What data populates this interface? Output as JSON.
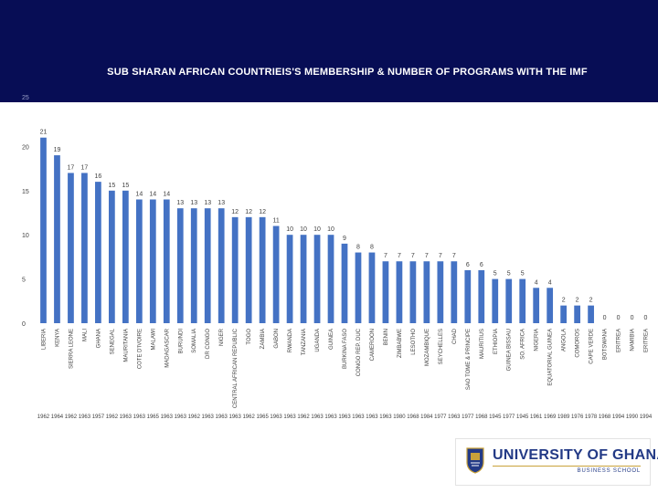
{
  "slide": {
    "title": "SUB SHARAN AFRICAN COUNTRIEIS'S MEMBERSHIP & NUMBER OF PROGRAMS WITH THE IMF",
    "top_tick_label": "25"
  },
  "logo": {
    "university": "UNIVERSITY OF GHANA",
    "school": "BUSINESS SCHOOL"
  },
  "colors": {
    "band": "#070d55",
    "bar": "#4472c4",
    "text": "#404040",
    "gridline": "#d9d9d9"
  },
  "chart_data": {
    "type": "bar",
    "title": "SUB SHARAN AFRICAN COUNTRIEIS'S MEMBERSHIP & NUMBER OF PROGRAMS WITH THE IMF",
    "xlabel": "",
    "ylabel": "",
    "ylim": [
      0,
      25
    ],
    "yticks": [
      0,
      5,
      10,
      15,
      20,
      25
    ],
    "gridlines": false,
    "categories": [
      "LIBERIA",
      "KENYA",
      "SIERRA LEONE",
      "MALI",
      "GHANA",
      "SENEGAL",
      "MAURITANIA",
      "COTE D'IVOIRE",
      "MALAWI",
      "MADAGASCAR",
      "BURUNDI",
      "SOMALIA",
      "DR CONGO",
      "NIGER",
      "CENTRAL AFRICAN REPUBLIC",
      "TOGO",
      "ZAMBIA",
      "GABON",
      "RWANDA",
      "TANZANIA",
      "UGANDA",
      "GUINEA",
      "BURKINA FASO",
      "CONGO REP. DUC",
      "CAMEROON",
      "BENIN",
      "ZIMBABWE",
      "LESOTHO",
      "MOZAMBIQUE",
      "SEYCHELLES",
      "CHAD",
      "SAO TOME & PRINCIPE",
      "MAURITIUS",
      "ETHIOPIA",
      "GUINEA BISSAU",
      "SO. AFRICA",
      "NIGERIA",
      "EQUATORIAL GUINEA",
      "ANGOLA",
      "COMOROS",
      "CAPE VERDE",
      "BOTSWANA",
      "ERITREA",
      "NAMIBIA",
      "ERITREA"
    ],
    "values": [
      21,
      19,
      17,
      17,
      16,
      15,
      15,
      14,
      14,
      14,
      13,
      13,
      13,
      13,
      12,
      12,
      12,
      11,
      10,
      10,
      10,
      10,
      9,
      8,
      8,
      7,
      7,
      7,
      7,
      7,
      7,
      6,
      6,
      5,
      5,
      5,
      4,
      4,
      2,
      2,
      2,
      0,
      0,
      0,
      0
    ],
    "membership_years": [
      "1962",
      "1964",
      "1962",
      "1963",
      "1957",
      "1962",
      "1963",
      "1963",
      "1965",
      "1963",
      "1963",
      "1962",
      "1963",
      "1963",
      "1963",
      "1962",
      "1965",
      "1963",
      "1963",
      "1962",
      "1963",
      "1963",
      "1963",
      "1963",
      "1963",
      "1963",
      "1980",
      "1968",
      "1984",
      "1977",
      "1963",
      "1977",
      "1968",
      "1945",
      "1977",
      "1945",
      "1961",
      "1969",
      "1989",
      "1976",
      "1978",
      "1968",
      "1994",
      "1990",
      "1994"
    ]
  }
}
